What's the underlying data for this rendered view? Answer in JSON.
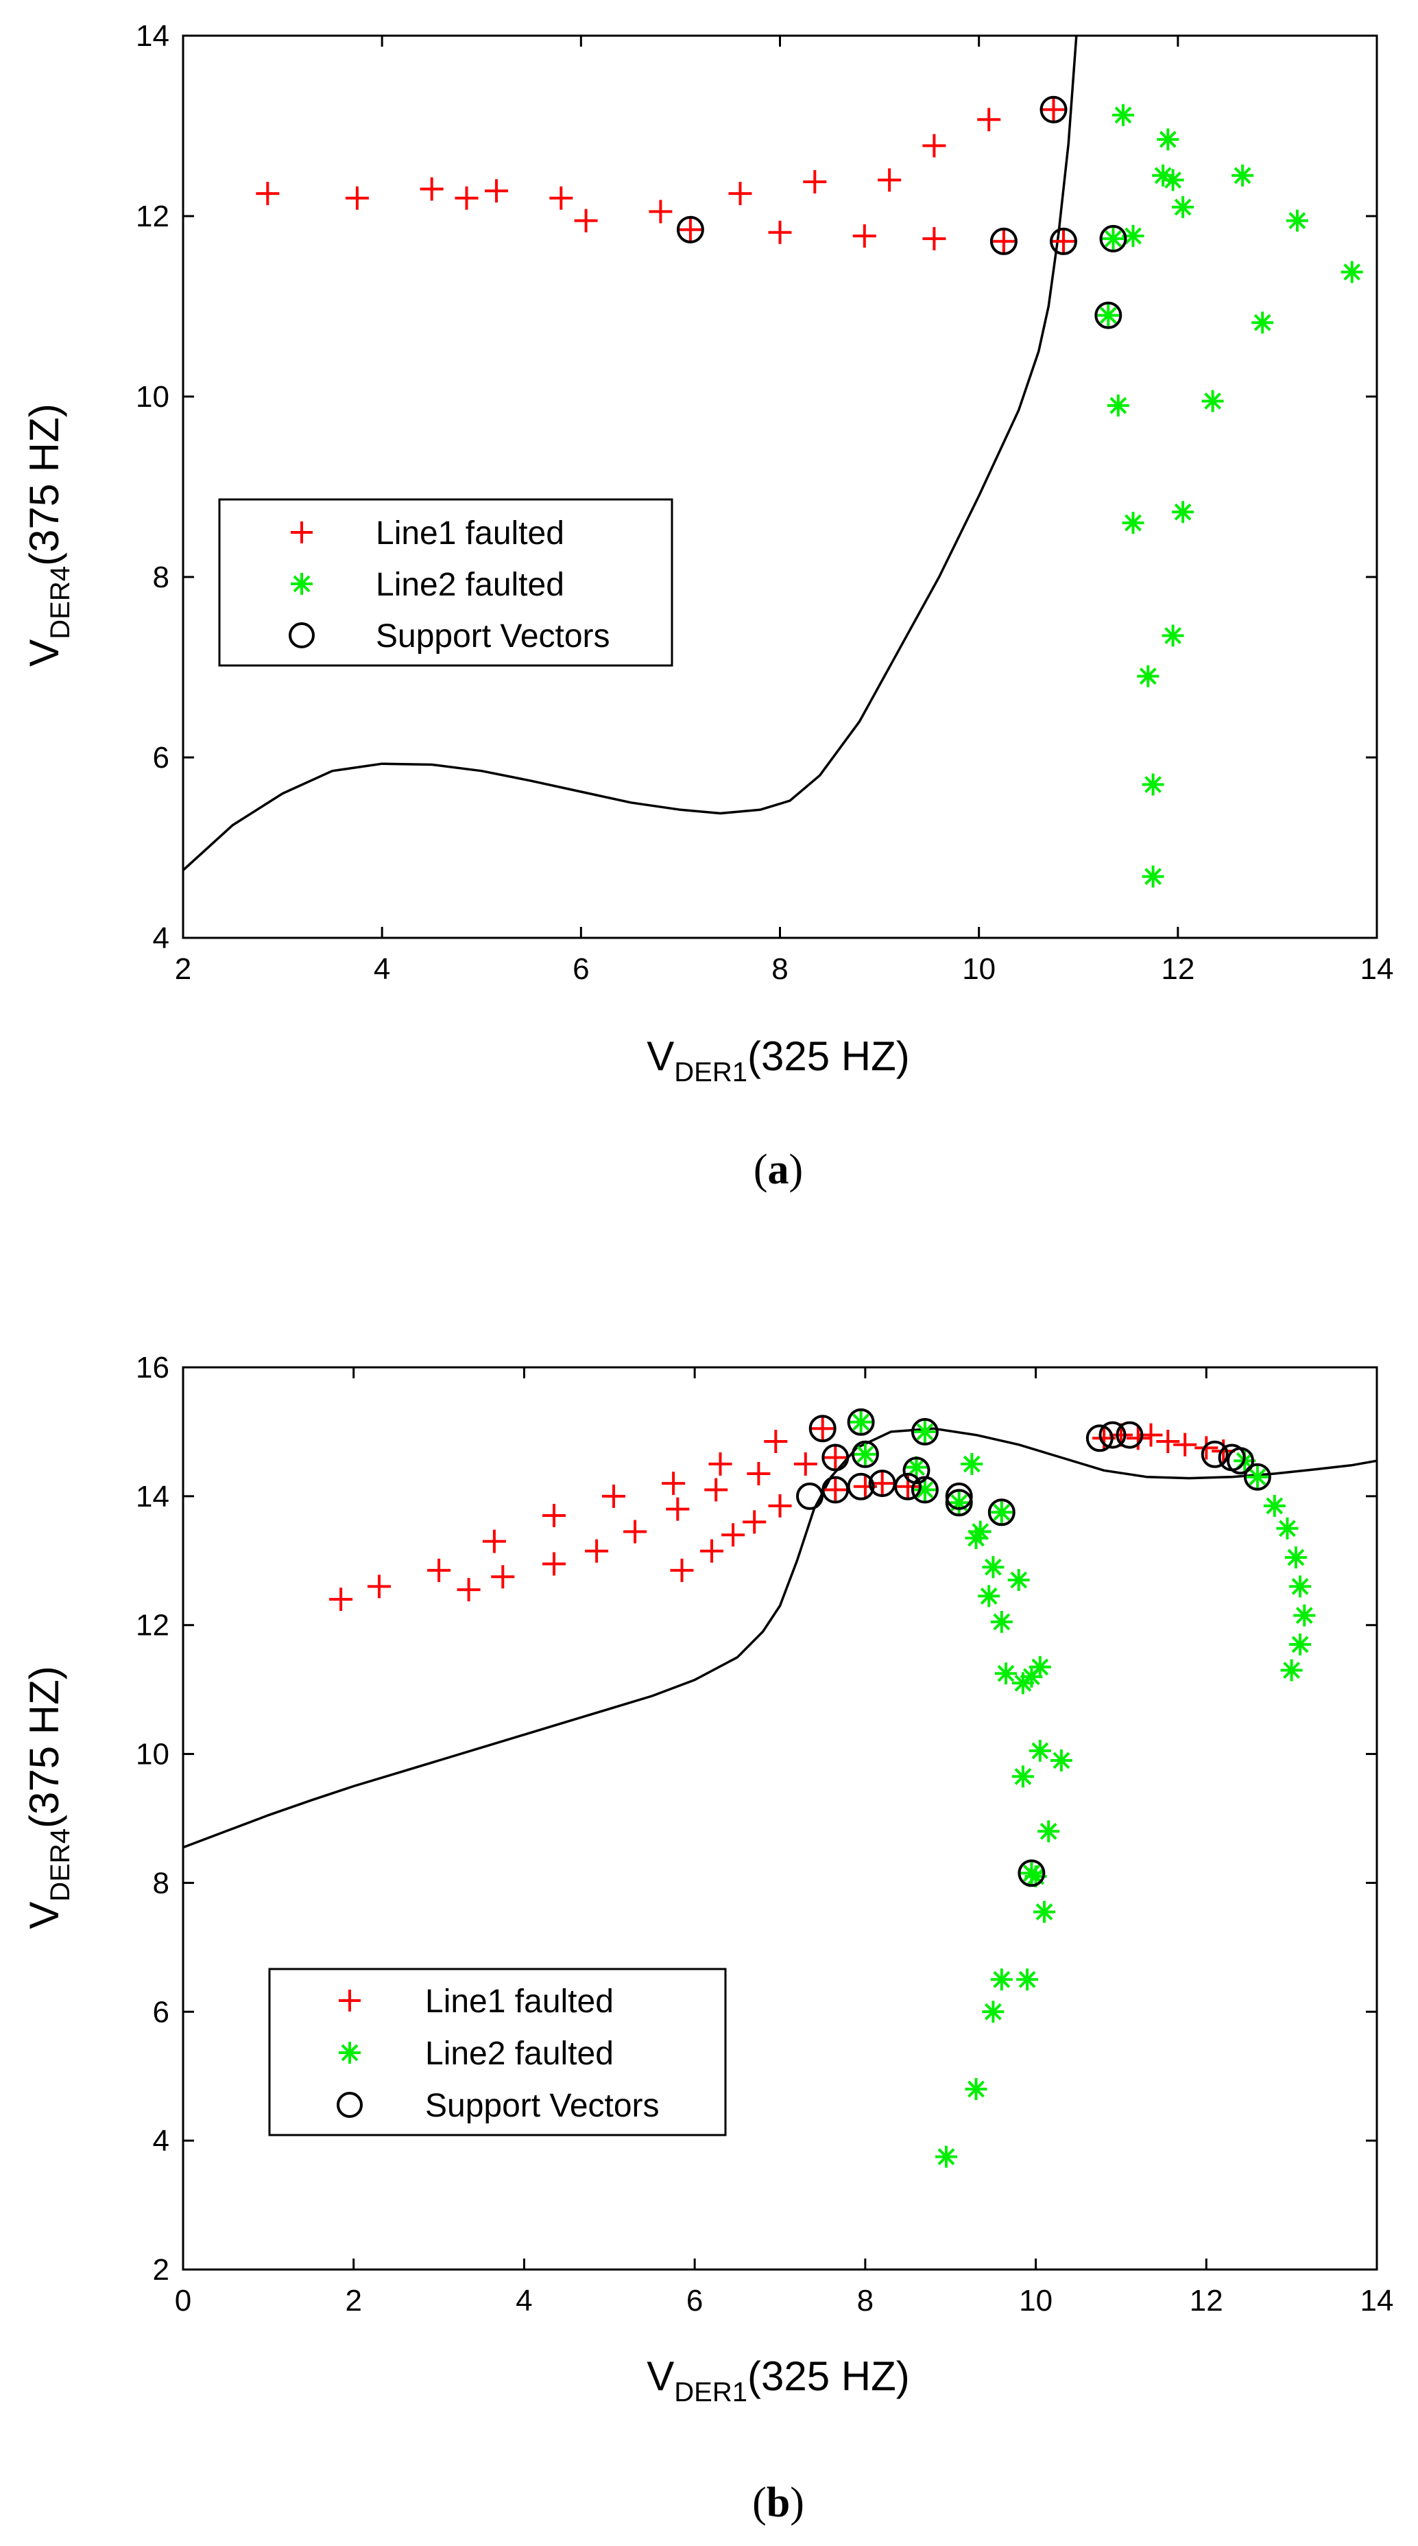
{
  "chart_data": [
    {
      "type": "scatter",
      "panel_label": "a",
      "xlabel": {
        "main": "V",
        "sub": "DER1",
        "rest": "(325 HZ)"
      },
      "ylabel": {
        "main": "V",
        "sub": "DER4",
        "rest": "(375 HZ)"
      },
      "xlim": [
        2,
        14
      ],
      "ylim": [
        4,
        14
      ],
      "xticks": [
        "2",
        "4",
        "6",
        "8",
        "10",
        "12",
        "14"
      ],
      "yticks": [
        "4",
        "6",
        "8",
        "10",
        "12",
        "14"
      ],
      "legend_position": "left-middle",
      "legend": [
        "Line1 faulted",
        "Line2 faulted",
        "Support Vectors"
      ],
      "colors": {
        "line1": "#ff0000",
        "line2": "#00ee00",
        "sv": "#000000",
        "boundary": "#000000"
      },
      "series": [
        {
          "name": "Line1 faulted",
          "marker": "plus",
          "points": [
            [
              2.85,
              12.25
            ],
            [
              3.75,
              12.2
            ],
            [
              4.5,
              12.3
            ],
            [
              4.85,
              12.2
            ],
            [
              5.15,
              12.28
            ],
            [
              5.8,
              12.2
            ],
            [
              6.05,
              11.95
            ],
            [
              6.8,
              12.05
            ],
            [
              7.1,
              11.85
            ],
            [
              7.6,
              12.25
            ],
            [
              8.0,
              11.82
            ],
            [
              8.35,
              12.38
            ],
            [
              8.85,
              11.78
            ],
            [
              9.1,
              12.4
            ],
            [
              9.55,
              11.75
            ],
            [
              9.55,
              12.78
            ],
            [
              10.1,
              13.07
            ],
            [
              10.25,
              11.72
            ],
            [
              10.75,
              13.18
            ],
            [
              10.85,
              11.72
            ]
          ]
        },
        {
          "name": "Line2 faulted",
          "marker": "asterisk",
          "points": [
            [
              11.45,
              13.12
            ],
            [
              11.9,
              12.85
            ],
            [
              12.65,
              12.45
            ],
            [
              11.85,
              12.45
            ],
            [
              11.95,
              12.4
            ],
            [
              12.05,
              12.1
            ],
            [
              13.2,
              11.95
            ],
            [
              13.75,
              11.38
            ],
            [
              11.55,
              11.78
            ],
            [
              11.35,
              11.75
            ],
            [
              11.3,
              10.9
            ],
            [
              12.85,
              10.82
            ],
            [
              11.4,
              9.9
            ],
            [
              12.35,
              9.95
            ],
            [
              12.05,
              8.72
            ],
            [
              11.55,
              8.6
            ],
            [
              11.95,
              7.35
            ],
            [
              11.7,
              6.9
            ],
            [
              11.75,
              5.7
            ],
            [
              11.75,
              4.68
            ]
          ]
        },
        {
          "name": "Support Vectors",
          "marker": "circle",
          "points": [
            [
              10.75,
              13.18
            ],
            [
              7.1,
              11.85
            ],
            [
              10.25,
              11.72
            ],
            [
              10.85,
              11.72
            ],
            [
              11.35,
              11.75
            ],
            [
              11.3,
              10.9
            ]
          ]
        }
      ],
      "boundary": [
        [
          2,
          4.75
        ],
        [
          2.5,
          5.25
        ],
        [
          3,
          5.6
        ],
        [
          3.5,
          5.85
        ],
        [
          4,
          5.93
        ],
        [
          4.5,
          5.92
        ],
        [
          5,
          5.85
        ],
        [
          5.5,
          5.74
        ],
        [
          6,
          5.62
        ],
        [
          6.5,
          5.5
        ],
        [
          7,
          5.42
        ],
        [
          7.4,
          5.38
        ],
        [
          7.8,
          5.42
        ],
        [
          8.1,
          5.52
        ],
        [
          8.4,
          5.8
        ],
        [
          8.8,
          6.4
        ],
        [
          9.2,
          7.2
        ],
        [
          9.6,
          8.0
        ],
        [
          10.0,
          8.9
        ],
        [
          10.4,
          9.85
        ],
        [
          10.6,
          10.5
        ],
        [
          10.7,
          11.0
        ],
        [
          10.8,
          11.8
        ],
        [
          10.9,
          12.8
        ],
        [
          10.98,
          14.0
        ]
      ]
    },
    {
      "type": "scatter",
      "panel_label": "b",
      "xlabel": {
        "main": "V",
        "sub": "DER1",
        "rest": "(325 HZ)"
      },
      "ylabel": {
        "main": "V",
        "sub": "DER4",
        "rest": "(375 HZ)"
      },
      "xlim": [
        0,
        14
      ],
      "ylim": [
        2,
        16
      ],
      "xticks": [
        "0",
        "2",
        "4",
        "6",
        "8",
        "10",
        "12",
        "14"
      ],
      "yticks": [
        "2",
        "4",
        "6",
        "8",
        "10",
        "12",
        "14",
        "16"
      ],
      "legend_position": "bottom-left",
      "legend": [
        "Line1 faulted",
        "Line2 faulted",
        "Support Vectors"
      ],
      "colors": {
        "line1": "#ff0000",
        "line2": "#00ee00",
        "sv": "#000000",
        "boundary": "#000000"
      },
      "series": [
        {
          "name": "Line1 faulted",
          "marker": "plus",
          "points": [
            [
              1.85,
              12.4
            ],
            [
              2.3,
              12.6
            ],
            [
              3.0,
              12.85
            ],
            [
              3.35,
              12.55
            ],
            [
              3.65,
              13.3
            ],
            [
              3.75,
              12.75
            ],
            [
              4.35,
              13.7
            ],
            [
              4.35,
              12.95
            ],
            [
              4.85,
              13.15
            ],
            [
              5.05,
              14.0
            ],
            [
              5.3,
              13.45
            ],
            [
              5.75,
              14.2
            ],
            [
              5.8,
              13.8
            ],
            [
              5.85,
              12.85
            ],
            [
              6.2,
              13.15
            ],
            [
              6.25,
              14.1
            ],
            [
              6.3,
              14.5
            ],
            [
              6.45,
              13.4
            ],
            [
              6.7,
              13.6
            ],
            [
              6.75,
              14.35
            ],
            [
              6.95,
              14.85
            ],
            [
              7.0,
              13.85
            ],
            [
              7.3,
              14.5
            ],
            [
              7.5,
              15.05
            ],
            [
              7.65,
              14.6
            ],
            [
              7.65,
              14.1
            ],
            [
              8.0,
              14.15
            ],
            [
              8.2,
              14.2
            ],
            [
              8.5,
              14.15
            ],
            [
              10.8,
              14.9
            ],
            [
              11.0,
              14.95
            ],
            [
              11.2,
              14.9
            ],
            [
              11.35,
              14.95
            ],
            [
              11.55,
              14.85
            ],
            [
              11.75,
              14.8
            ],
            [
              12.0,
              14.75
            ],
            [
              12.2,
              14.7
            ]
          ]
        },
        {
          "name": "Line2 faulted",
          "marker": "asterisk",
          "points": [
            [
              7.95,
              15.15
            ],
            [
              8.0,
              14.65
            ],
            [
              8.6,
              14.45
            ],
            [
              8.7,
              15.0
            ],
            [
              8.7,
              14.1
            ],
            [
              9.1,
              13.9
            ],
            [
              9.25,
              14.5
            ],
            [
              9.3,
              13.35
            ],
            [
              9.35,
              13.45
            ],
            [
              9.5,
              12.9
            ],
            [
              9.45,
              12.45
            ],
            [
              9.6,
              12.05
            ],
            [
              9.6,
              13.75
            ],
            [
              9.65,
              11.25
            ],
            [
              9.8,
              12.7
            ],
            [
              9.85,
              11.1
            ],
            [
              9.85,
              9.65
            ],
            [
              9.95,
              11.2
            ],
            [
              10.05,
              11.35
            ],
            [
              10.05,
              10.05
            ],
            [
              10.3,
              9.9
            ],
            [
              10.15,
              8.8
            ],
            [
              9.95,
              8.15
            ],
            [
              10.0,
              8.1
            ],
            [
              10.1,
              7.55
            ],
            [
              9.6,
              6.5
            ],
            [
              9.9,
              6.5
            ],
            [
              9.5,
              6.0
            ],
            [
              9.3,
              4.8
            ],
            [
              8.95,
              3.75
            ],
            [
              12.45,
              14.55
            ],
            [
              12.6,
              14.3
            ],
            [
              12.8,
              13.85
            ],
            [
              12.95,
              13.5
            ],
            [
              13.05,
              13.05
            ],
            [
              13.1,
              12.6
            ],
            [
              13.15,
              12.15
            ],
            [
              13.1,
              11.7
            ],
            [
              13.0,
              11.3
            ]
          ]
        },
        {
          "name": "Support Vectors",
          "marker": "circle",
          "points": [
            [
              7.35,
              14.0
            ],
            [
              7.5,
              15.05
            ],
            [
              7.65,
              14.6
            ],
            [
              7.65,
              14.1
            ],
            [
              7.95,
              14.15
            ],
            [
              7.95,
              15.15
            ],
            [
              8.0,
              14.65
            ],
            [
              8.2,
              14.2
            ],
            [
              8.5,
              14.15
            ],
            [
              8.6,
              14.4
            ],
            [
              8.7,
              15.0
            ],
            [
              8.7,
              14.1
            ],
            [
              9.1,
              13.9
            ],
            [
              9.1,
              14.0
            ],
            [
              9.6,
              13.75
            ],
            [
              9.95,
              8.15
            ],
            [
              10.75,
              14.9
            ],
            [
              10.9,
              14.95
            ],
            [
              11.1,
              14.95
            ],
            [
              12.1,
              14.65
            ],
            [
              12.3,
              14.6
            ],
            [
              12.4,
              14.55
            ],
            [
              12.6,
              14.3
            ]
          ]
        }
      ],
      "boundary": [
        [
          0,
          8.55
        ],
        [
          0.5,
          8.8
        ],
        [
          1,
          9.05
        ],
        [
          1.5,
          9.28
        ],
        [
          2,
          9.5
        ],
        [
          2.5,
          9.7
        ],
        [
          3,
          9.9
        ],
        [
          3.5,
          10.1
        ],
        [
          4,
          10.3
        ],
        [
          4.5,
          10.5
        ],
        [
          5,
          10.7
        ],
        [
          5.5,
          10.9
        ],
        [
          6,
          11.15
        ],
        [
          6.5,
          11.5
        ],
        [
          6.8,
          11.9
        ],
        [
          7.0,
          12.3
        ],
        [
          7.2,
          13.0
        ],
        [
          7.4,
          13.8
        ],
        [
          7.6,
          14.3
        ],
        [
          7.9,
          14.75
        ],
        [
          8.3,
          15.0
        ],
        [
          8.8,
          15.05
        ],
        [
          9.3,
          14.95
        ],
        [
          9.8,
          14.8
        ],
        [
          10.3,
          14.6
        ],
        [
          10.8,
          14.4
        ],
        [
          11.3,
          14.3
        ],
        [
          11.8,
          14.28
        ],
        [
          12.3,
          14.3
        ],
        [
          12.8,
          14.35
        ],
        [
          13.3,
          14.42
        ],
        [
          13.7,
          14.48
        ],
        [
          14.0,
          14.55
        ]
      ]
    }
  ]
}
